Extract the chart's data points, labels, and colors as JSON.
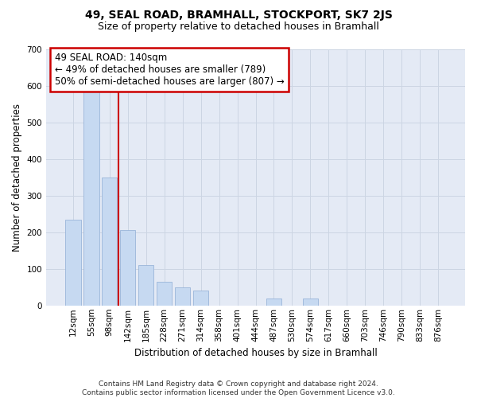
{
  "title": "49, SEAL ROAD, BRAMHALL, STOCKPORT, SK7 2JS",
  "subtitle": "Size of property relative to detached houses in Bramhall",
  "xlabel": "Distribution of detached houses by size in Bramhall",
  "ylabel": "Number of detached properties",
  "categories": [
    "12sqm",
    "55sqm",
    "98sqm",
    "142sqm",
    "185sqm",
    "228sqm",
    "271sqm",
    "314sqm",
    "358sqm",
    "401sqm",
    "444sqm",
    "487sqm",
    "530sqm",
    "574sqm",
    "617sqm",
    "660sqm",
    "703sqm",
    "746sqm",
    "790sqm",
    "833sqm",
    "876sqm"
  ],
  "values": [
    235,
    585,
    350,
    205,
    110,
    65,
    50,
    40,
    0,
    0,
    0,
    20,
    0,
    20,
    0,
    0,
    0,
    0,
    0,
    0,
    0
  ],
  "bar_color": "#c6d9f1",
  "bar_edge_color": "#9ab5d9",
  "grid_color": "#ccd5e3",
  "bg_color": "#e4eaf5",
  "annotation_box_text": "49 SEAL ROAD: 140sqm\n← 49% of detached houses are smaller (789)\n50% of semi-detached houses are larger (807) →",
  "annotation_box_color": "#cc0000",
  "annotation_box_bg": "#ffffff",
  "red_line_x": 2.5,
  "ylim": [
    0,
    700
  ],
  "yticks": [
    0,
    100,
    200,
    300,
    400,
    500,
    600,
    700
  ],
  "footnote": "Contains HM Land Registry data © Crown copyright and database right 2024.\nContains public sector information licensed under the Open Government Licence v3.0.",
  "title_fontsize": 10,
  "subtitle_fontsize": 9,
  "tick_fontsize": 7.5,
  "ylabel_fontsize": 8.5,
  "xlabel_fontsize": 8.5,
  "annot_fontsize": 8.5,
  "footnote_fontsize": 6.5
}
